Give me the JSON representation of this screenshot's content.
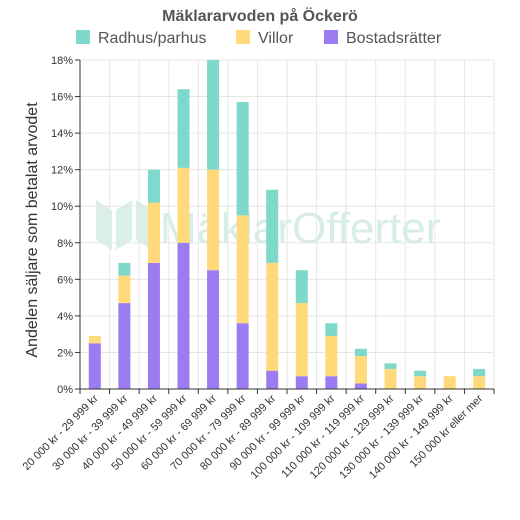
{
  "chart_data": {
    "type": "bar",
    "stacked": true,
    "title": "Mäklararvoden på Öckerö",
    "ylabel": "Andelen säljare som betalat arvodet",
    "xlabel": "",
    "ylim": [
      0,
      18
    ],
    "yticks": [
      0,
      2,
      4,
      6,
      8,
      10,
      12,
      14,
      16,
      18
    ],
    "ytick_suffix": "%",
    "grid": true,
    "legend_position": "top",
    "watermark": "MäklarOfferter",
    "categories": [
      "20 000 kr - 29 999 kr",
      "30 000 kr - 39 999 kr",
      "40 000 kr - 49 999 kr",
      "50 000 kr - 59 999 kr",
      "60 000 kr - 69 999 kr",
      "70 000 kr - 79 999 kr",
      "80 000 kr - 89 999 kr",
      "90 000 kr - 99 999 kr",
      "100 000 kr - 109 999 kr",
      "110 000 kr - 119 999 kr",
      "120 000 kr - 129 999 kr",
      "130 000 kr - 139 999 kr",
      "140 000 kr - 149 999 kr",
      "150 000 kr eller mer"
    ],
    "series": [
      {
        "name": "Bostadsrätter",
        "color": "#9b7cf2",
        "values": [
          2.5,
          4.7,
          6.9,
          8.0,
          6.5,
          3.6,
          1.0,
          0.7,
          0.7,
          0.3,
          0,
          0,
          0,
          0
        ]
      },
      {
        "name": "Villor",
        "color": "#ffd97a",
        "values": [
          0.4,
          1.5,
          3.3,
          4.1,
          5.5,
          5.9,
          5.9,
          4.0,
          2.2,
          1.5,
          1.1,
          0.7,
          0.7,
          0.7
        ]
      },
      {
        "name": "Radhus/parhus",
        "color": "#7ed8cc",
        "values": [
          0,
          0.7,
          1.8,
          4.3,
          6.0,
          6.2,
          4.0,
          1.8,
          0.7,
          0.4,
          0.3,
          0.3,
          0,
          0.4
        ]
      }
    ],
    "legend_order": [
      "Radhus/parhus",
      "Villor",
      "Bostadsrätter"
    ]
  }
}
